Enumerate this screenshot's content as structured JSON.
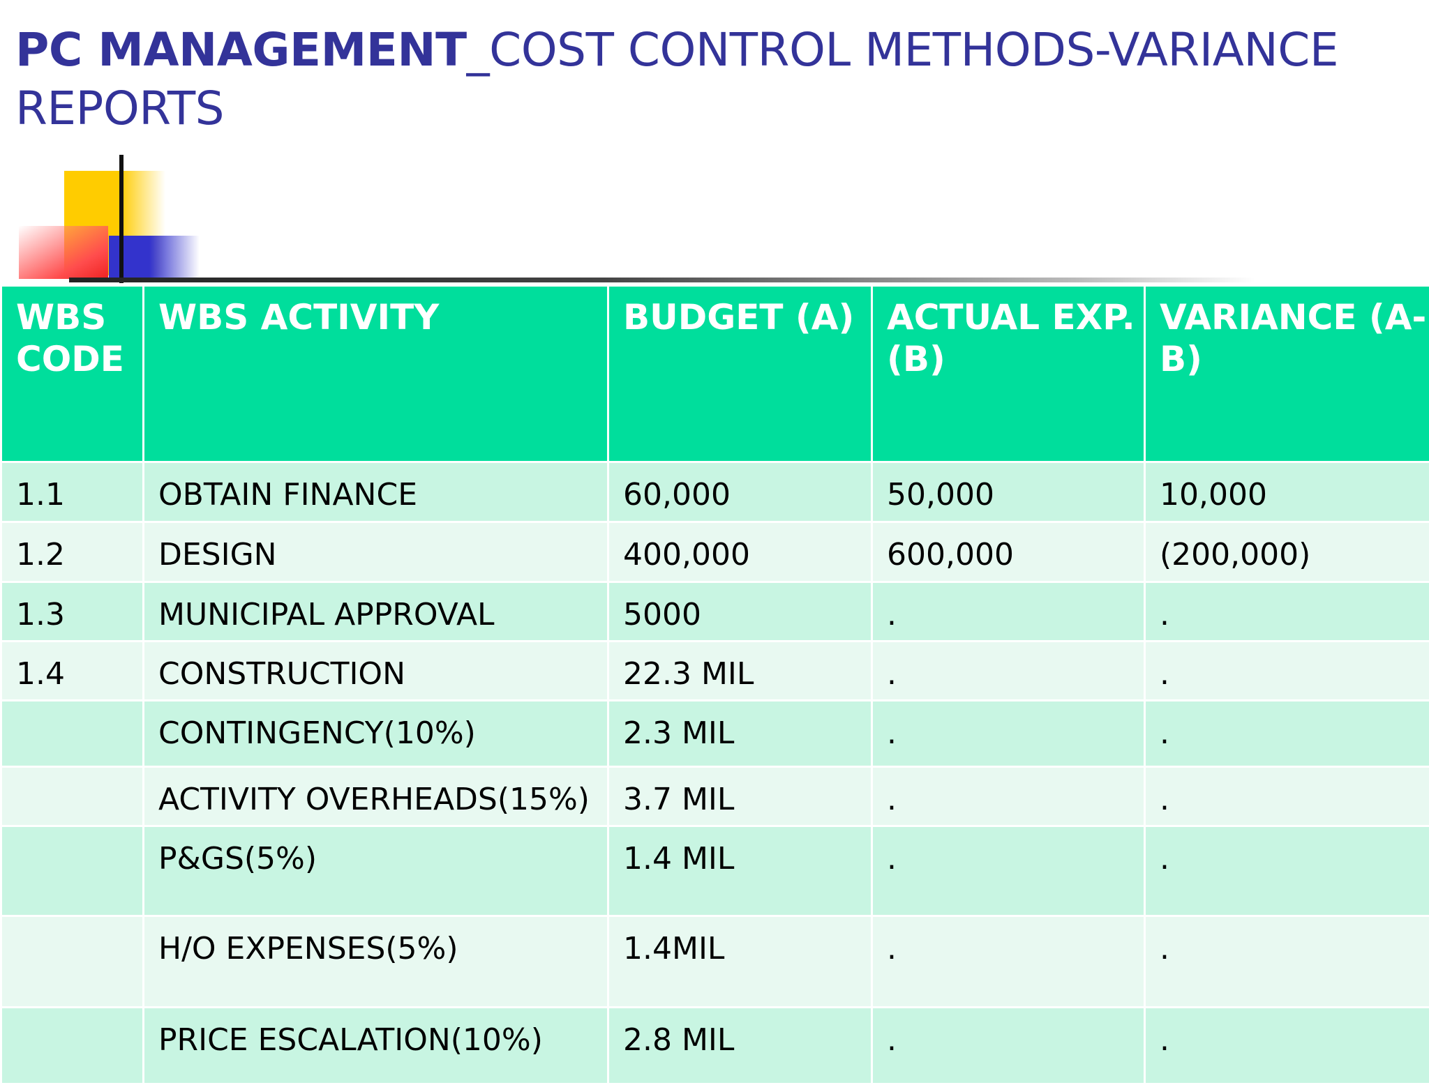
{
  "title": {
    "bold": "PC MANAGEMENT",
    "rest": "_COST CONTROL METHODS-VARIANCE REPORTS"
  },
  "colors": {
    "title": "#333399",
    "header_bg": "#00de9c",
    "row_odd": "#c8f5e2",
    "row_even": "#e8f9f1",
    "negative": "#e00000"
  },
  "table": {
    "headers": [
      "WBS CODE",
      "WBS ACTIVITY",
      "BUDGET (A)",
      "ACTUAL EXP.(B)",
      "VARIANCE (A-B)"
    ],
    "rows": [
      {
        "code": "1.1",
        "activity": "OBTAIN FINANCE",
        "budget": "60,000",
        "actual": "50,000",
        "variance": "10,000"
      },
      {
        "code": "1.2",
        "activity": "DESIGN",
        "budget": "400,000",
        "actual": "600,000",
        "variance": "(200,000)"
      },
      {
        "code": "1.3",
        "activity": "MUNICIPAL APPROVAL",
        "budget": "5000",
        "actual": ".",
        "variance": "."
      },
      {
        "code": "1.4",
        "activity": "CONSTRUCTION",
        "budget": "22.3 MIL",
        "actual": ".",
        "variance": "."
      },
      {
        "code": "",
        "activity": "CONTINGENCY(10%)",
        "budget": "2.3 MIL",
        "actual": ".",
        "variance": "."
      },
      {
        "code": "",
        "activity": "ACTIVITY OVERHEADS(15%)",
        "budget": "3.7 MIL",
        "actual": ".",
        "variance": "."
      },
      {
        "code": "",
        "activity": "P&GS(5%)",
        "budget": "1.4 MIL",
        "actual": ".",
        "variance": "."
      },
      {
        "code": "",
        "activity": "H/O EXPENSES(5%)",
        "budget": "1.4MIL",
        "actual": ".",
        "variance": "."
      },
      {
        "code": "",
        "activity": "PRICE ESCALATION(10%)",
        "budget": "2.8 MIL",
        "actual": ".",
        "variance": "."
      }
    ]
  }
}
